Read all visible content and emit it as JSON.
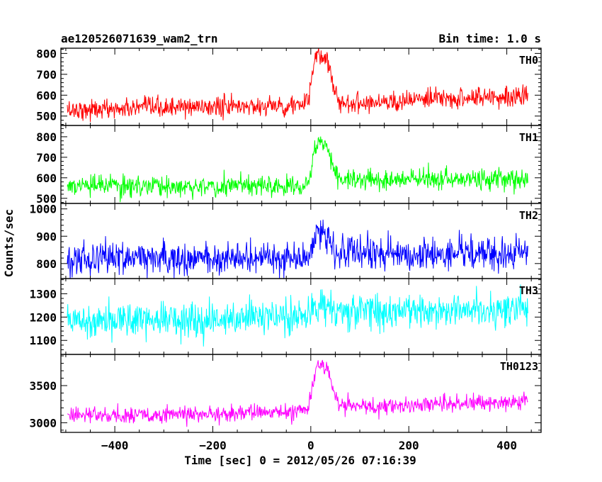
{
  "header": {
    "source": "ae120526071639_wam2_trn",
    "bin_time": "Bin time: 1.0 s"
  },
  "chart_data": {
    "type": "line",
    "xlabel": "Time [sec] 0 = 2012/05/26 07:16:39",
    "ylabel": "Counts/sec",
    "xlim": [
      -510,
      470
    ],
    "x_ticks": [
      -400,
      -200,
      0,
      200,
      400
    ],
    "x_tick_labels": [
      "−400",
      "−200",
      "0",
      "200",
      "400"
    ],
    "x_range": [
      -497,
      443
    ],
    "bin_seconds": 1.0,
    "panels": [
      {
        "label": "TH0",
        "color": "#ff0000",
        "ylim": [
          455,
          825
        ],
        "y_ticks": [
          500,
          600,
          700,
          800
        ],
        "y_tick_labels": [
          "500",
          "600",
          "700",
          "800"
        ],
        "anchors": {
          "x": [
            -497,
            -380,
            -200,
            -100,
            -40,
            -5,
            5,
            15,
            35,
            48,
            60,
            150,
            300,
            443
          ],
          "y": [
            530,
            535,
            545,
            548,
            550,
            562,
            740,
            790,
            770,
            630,
            560,
            570,
            585,
            600
          ]
        },
        "noise_sd": 24
      },
      {
        "label": "TH1",
        "color": "#00ff00",
        "ylim": [
          475,
          855
        ],
        "y_ticks": [
          500,
          600,
          700,
          800
        ],
        "y_tick_labels": [
          "500",
          "600",
          "700",
          "800"
        ],
        "anchors": {
          "x": [
            -497,
            -200,
            -40,
            -5,
            5,
            15,
            35,
            48,
            60,
            200,
            443
          ],
          "y": [
            560,
            558,
            562,
            575,
            700,
            790,
            760,
            640,
            590,
            590,
            595
          ]
        },
        "noise_sd": 25
      },
      {
        "label": "TH2",
        "color": "#0000ff",
        "ylim": [
          745,
          1020
        ],
        "y_ticks": [
          800,
          900,
          1000
        ],
        "y_tick_labels": [
          "800",
          "900",
          "1000"
        ],
        "anchors": {
          "x": [
            -497,
            -200,
            -40,
            -5,
            5,
            15,
            35,
            48,
            60,
            200,
            443
          ],
          "y": [
            820,
            820,
            818,
            830,
            880,
            920,
            900,
            850,
            835,
            832,
            838
          ]
        },
        "noise_sd": 30
      },
      {
        "label": "TH3",
        "color": "#00ffff",
        "ylim": [
          1040,
          1365
        ],
        "y_ticks": [
          1100,
          1200,
          1300
        ],
        "y_tick_labels": [
          "1100",
          "1200",
          "1300"
        ],
        "anchors": {
          "x": [
            -497,
            -200,
            -40,
            0,
            20,
            40,
            60,
            200,
            443
          ],
          "y": [
            1190,
            1195,
            1200,
            1215,
            1265,
            1250,
            1220,
            1225,
            1240
          ]
        },
        "noise_sd": 38
      },
      {
        "label": "TH0123",
        "color": "#ff00ff",
        "ylim": [
          2870,
          3920
        ],
        "y_ticks": [
          3000,
          3500
        ],
        "y_tick_labels": [
          "3000",
          "3500"
        ],
        "anchors": {
          "x": [
            -497,
            -200,
            -40,
            -5,
            5,
            15,
            35,
            48,
            60,
            150,
            300,
            443
          ],
          "y": [
            3100,
            3110,
            3150,
            3190,
            3550,
            3800,
            3720,
            3350,
            3230,
            3230,
            3260,
            3290
          ]
        },
        "noise_sd": 55
      }
    ]
  }
}
